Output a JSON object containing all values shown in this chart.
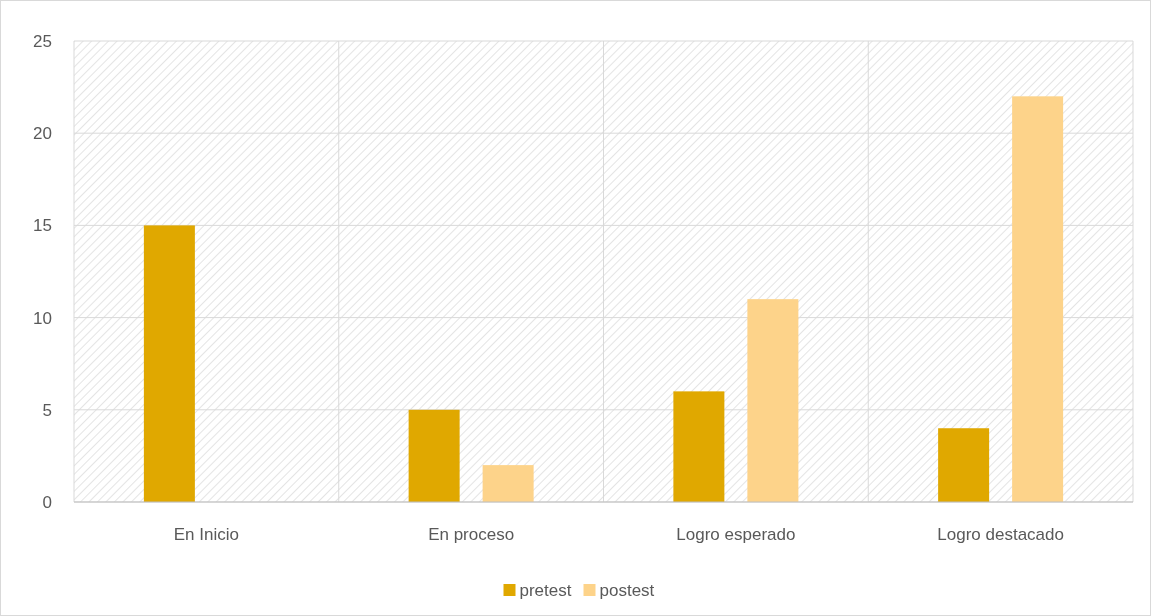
{
  "chart_data": {
    "type": "bar",
    "categories": [
      "En Inicio",
      "En proceso",
      "Logro esperado",
      "Logro destacado"
    ],
    "series": [
      {
        "name": "pretest",
        "color": "#e0a800",
        "values": [
          15,
          5,
          6,
          4
        ]
      },
      {
        "name": "postest",
        "color": "#fdd38a",
        "values": [
          0,
          2,
          11,
          22
        ]
      }
    ],
    "ylim": [
      0,
      25
    ],
    "yticks": [
      0,
      5,
      10,
      15,
      20,
      25
    ],
    "grid": true,
    "legend": "bottom"
  }
}
